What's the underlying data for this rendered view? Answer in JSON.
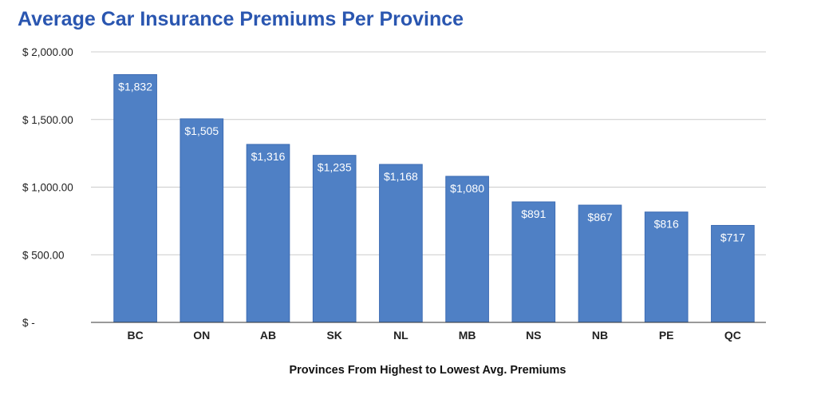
{
  "chart_data": {
    "type": "bar",
    "title": "Average Car Insurance Premiums Per Province",
    "xlabel": "Provinces From Highest to Lowest Avg. Premiums",
    "ylabel": "",
    "categories": [
      "BC",
      "ON",
      "AB",
      "SK",
      "NL",
      "MB",
      "NS",
      "NB",
      "PE",
      "QC"
    ],
    "values": [
      1832,
      1505,
      1316,
      1235,
      1168,
      1080,
      891,
      867,
      816,
      717
    ],
    "data_labels": [
      "$1,832",
      "$1,505",
      "$1,316",
      "$1,235",
      "$1,168",
      "$1,080",
      "$891",
      "$867",
      "$816",
      "$717"
    ],
    "ylim": [
      0,
      2000
    ],
    "yticks": [
      0,
      500,
      1000,
      1500,
      2000
    ],
    "ytick_labels": [
      "$ -",
      "$ 500.00",
      "$ 1,000.00",
      "$ 1,500.00",
      "$ 2,000.00"
    ],
    "grid": true,
    "legend": "none",
    "colors": {
      "bar": "#4f80c5",
      "bar_edge": "#3d6cb3",
      "title": "#2a56b0",
      "grid": "#cccccc"
    }
  }
}
